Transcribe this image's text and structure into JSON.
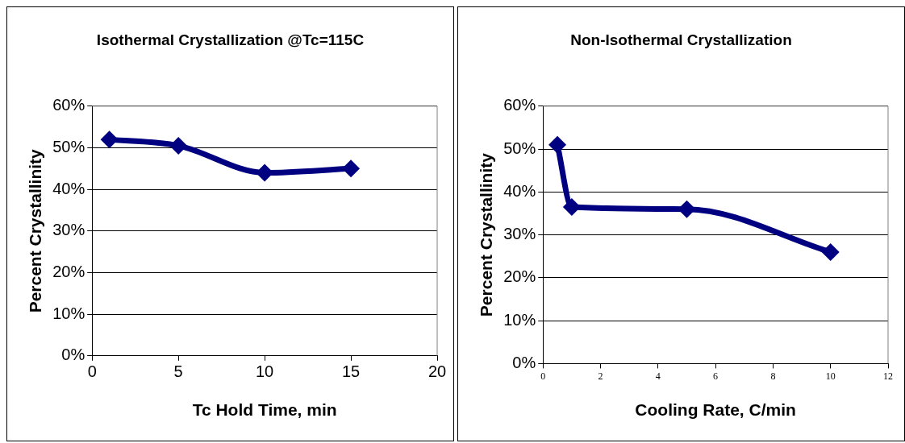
{
  "chart_data": [
    {
      "type": "line",
      "title": "Isothermal Crystallization @Tc=115C",
      "xlabel": "Tc Hold Time, min",
      "ylabel": "Percent Crystallinity",
      "series": [
        {
          "color": "#000080",
          "x": [
            1,
            5,
            10,
            15
          ],
          "values": [
            52,
            50.5,
            44,
            45
          ]
        }
      ],
      "xlim": [
        0,
        20
      ],
      "xticks": [
        0,
        5,
        10,
        15,
        20
      ],
      "ylim": [
        0,
        60
      ],
      "yticks": [
        {
          "value": 0,
          "label": "0%"
        },
        {
          "value": 10,
          "label": "10%"
        },
        {
          "value": 20,
          "label": "20%"
        },
        {
          "value": 30,
          "label": "30%"
        },
        {
          "value": 40,
          "label": "40%"
        },
        {
          "value": 50,
          "label": "50%"
        },
        {
          "value": 60,
          "label": "60%"
        }
      ],
      "grid": "y",
      "legend": false,
      "marker": "diamond",
      "line_style": "solid"
    },
    {
      "type": "line",
      "title": "Non-Isothermal Crystallization",
      "xlabel": "Cooling Rate, C/min",
      "ylabel": "Percent Crystallinity",
      "series": [
        {
          "color": "#000080",
          "x": [
            0.5,
            1,
            5,
            10
          ],
          "values": [
            51,
            36.5,
            36,
            26
          ]
        }
      ],
      "xlim": [
        0,
        12
      ],
      "xticks": [
        0,
        2,
        4,
        6,
        8,
        10,
        12
      ],
      "ylim": [
        0,
        60
      ],
      "yticks": [
        {
          "value": 0,
          "label": "0%"
        },
        {
          "value": 10,
          "label": "10%"
        },
        {
          "value": 20,
          "label": "20%"
        },
        {
          "value": 30,
          "label": "30%"
        },
        {
          "value": 40,
          "label": "40%"
        },
        {
          "value": 50,
          "label": "50%"
        },
        {
          "value": 60,
          "label": "60%"
        }
      ],
      "grid": "y",
      "legend": false,
      "marker": "diamond",
      "line_style": "solid"
    }
  ]
}
